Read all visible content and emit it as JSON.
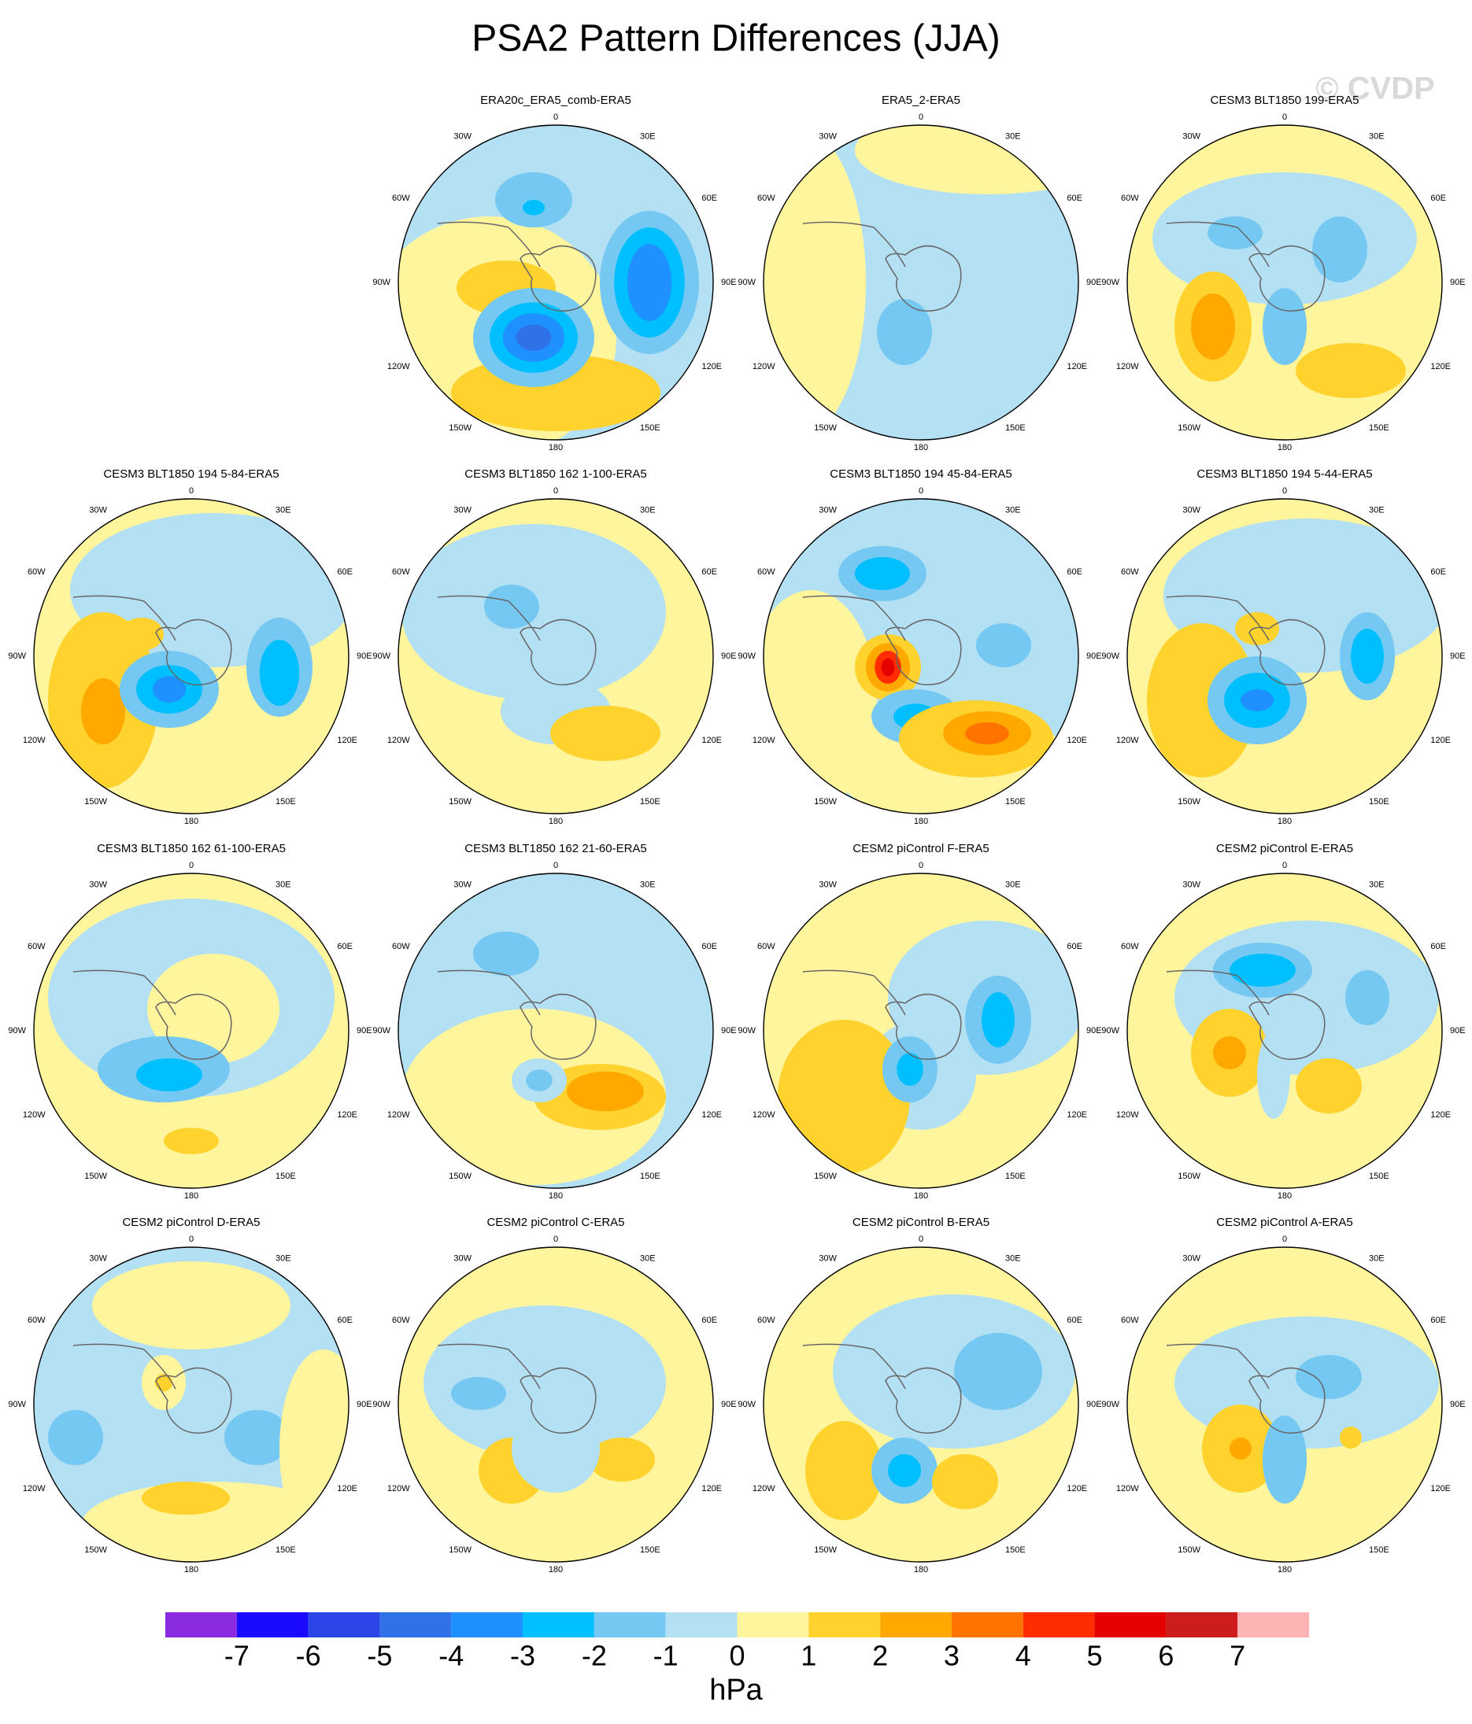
{
  "title": "PSA2 Pattern Differences (JJA)",
  "watermark": "© CVDP",
  "panels": [
    {
      "title": "ERA20c_ERA5_comb-ERA5"
    },
    {
      "title": "ERA5_2-ERA5"
    },
    {
      "title": "CESM3 BLT1850 199-ERA5"
    },
    {
      "title": "CESM3 BLT1850 194 5-84-ERA5"
    },
    {
      "title": "CESM3 BLT1850 162 1-100-ERA5"
    },
    {
      "title": "CESM3 BLT1850 194 45-84-ERA5"
    },
    {
      "title": "CESM3 BLT1850 194 5-44-ERA5"
    },
    {
      "title": "CESM3 BLT1850 162 61-100-ERA5"
    },
    {
      "title": "CESM3 BLT1850 162 21-60-ERA5"
    },
    {
      "title": "CESM2 piControl F-ERA5"
    },
    {
      "title": "CESM2 piControl E-ERA5"
    },
    {
      "title": "CESM2 piControl D-ERA5"
    },
    {
      "title": "CESM2 piControl C-ERA5"
    },
    {
      "title": "CESM2 piControl B-ERA5"
    },
    {
      "title": "CESM2 piControl A-ERA5"
    }
  ],
  "longitude_labels": [
    "0",
    "30E",
    "60E",
    "90E",
    "120E",
    "150E",
    "180",
    "150W",
    "120W",
    "90W",
    "60W",
    "30W"
  ],
  "colorbar": {
    "colors": [
      "#8a2be2",
      "#1a0aff",
      "#2b45e6",
      "#2f72e8",
      "#1e90ff",
      "#00bfff",
      "#75c8f2",
      "#b4e0f3",
      "#fff59d",
      "#ffd22e",
      "#ffa800",
      "#ff7400",
      "#ff2d00",
      "#e50000",
      "#cc1c1c",
      "#ffb4b4"
    ],
    "labels": [
      -7,
      -6,
      -5,
      -4,
      -3,
      -2,
      -1,
      0,
      1,
      2,
      3,
      4,
      5,
      6,
      7
    ],
    "unit": "hPa"
  }
}
